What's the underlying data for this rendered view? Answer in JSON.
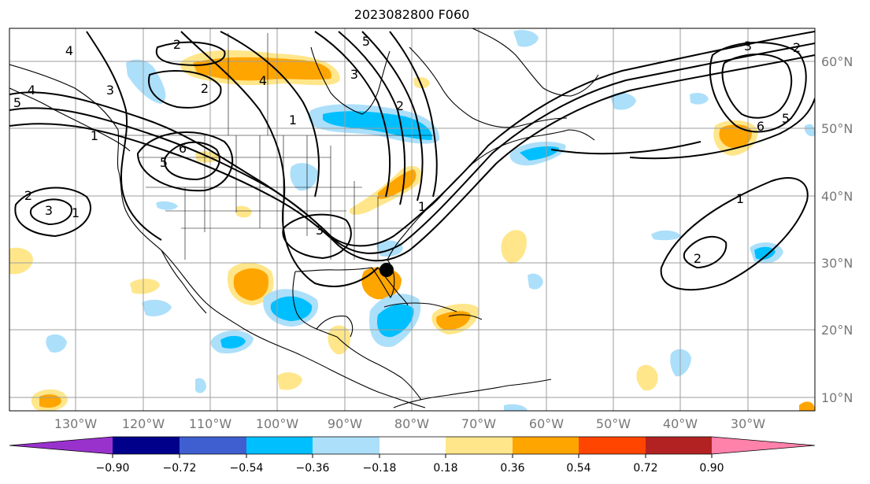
{
  "title": "2023082800 F060",
  "lon_labels": [
    "130°W",
    "120°W",
    "110°W",
    "100°W",
    "90°W",
    "80°W",
    "70°W",
    "60°W",
    "50°W",
    "40°W",
    "30°W"
  ],
  "lat_labels": [
    "60°N",
    "50°N",
    "40°N",
    "30°N",
    "20°N",
    "10°N"
  ],
  "colorbar": {
    "ticks": [
      "−0.90",
      "−0.72",
      "−0.54",
      "−0.36",
      "−0.18",
      "0.18",
      "0.36",
      "0.54",
      "0.72",
      "0.90"
    ],
    "colors": {
      "under": "#9932cc",
      "bins": [
        "#00008b",
        "#3f5fd0",
        "#00bfff",
        "#acdffa",
        "#ffffff",
        "#ffe68a",
        "#ffa500",
        "#ff4500",
        "#b22222"
      ],
      "over": "#ff82ab"
    }
  },
  "contour_labels": [
    "2",
    "4",
    "5",
    "3",
    "2",
    "1",
    "6",
    "4",
    "5",
    "2",
    "3",
    "1",
    "4",
    "5",
    "3",
    "1",
    "2",
    "3",
    "6",
    "5",
    "1",
    "2",
    "2",
    "1",
    "3"
  ],
  "marker": {
    "name": "storm-center-marker",
    "color": "#000000"
  }
}
